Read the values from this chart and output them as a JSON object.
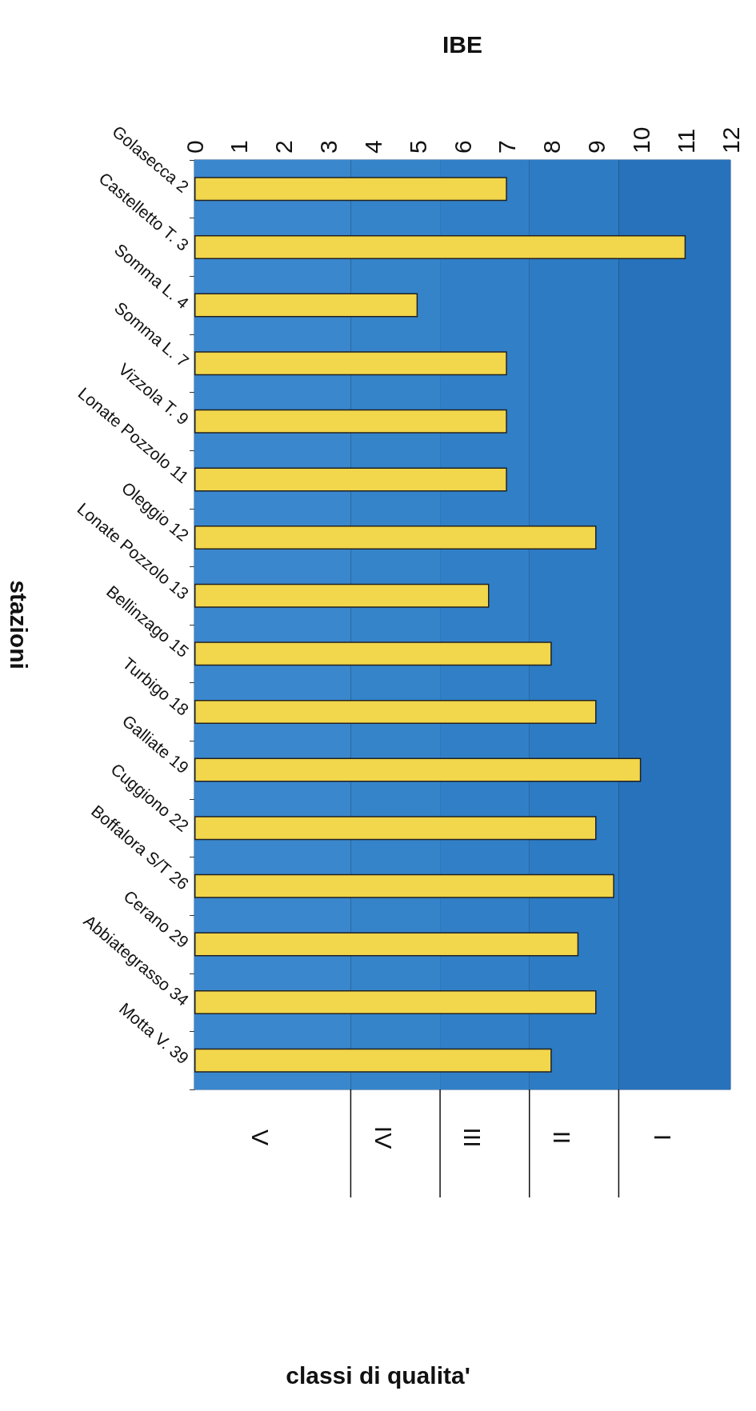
{
  "chart_data": {
    "type": "bar",
    "orientation": "horizontal",
    "xlabel": "IBE",
    "ylabel": "stazioni",
    "categories": [
      "Golasecca 2",
      "Castelletto T. 3",
      "Somma L. 4",
      "Somma L. 7",
      "Vizzola T. 9",
      "Lonate Pozzolo 11",
      "Oleggio 12",
      "Lonate Pozzolo 13",
      "Bellinzago 15",
      "Turbigo 18",
      "Galliate 19",
      "Cuggiono 22",
      "Boffalora S/T 26",
      "Cerano 29",
      "Abbiategrasso 34",
      "Motta V. 39"
    ],
    "values": [
      7,
      11,
      5,
      7,
      7,
      7,
      9,
      6.6,
      8,
      9,
      10,
      9,
      9.4,
      8.6,
      9,
      8
    ],
    "color": "#f2d64b",
    "xlim": [
      0,
      12
    ],
    "xticks": [
      0,
      1,
      2,
      3,
      4,
      5,
      6,
      7,
      8,
      9,
      10,
      11,
      12
    ],
    "bands": [
      {
        "axis": "x",
        "from": 0,
        "to": 3.5,
        "label": "V",
        "color": "#3a87cd"
      },
      {
        "axis": "x",
        "from": 3.5,
        "to": 5.5,
        "label": "IV",
        "color": "#3584ca"
      },
      {
        "axis": "x",
        "from": 5.5,
        "to": 7.5,
        "label": "III",
        "color": "#3180c7"
      },
      {
        "axis": "x",
        "from": 7.5,
        "to": 9.5,
        "label": "II",
        "color": "#2d7bc3"
      },
      {
        "axis": "x",
        "from": 9.5,
        "to": 12,
        "label": "I",
        "color": "#2772bb"
      }
    ],
    "ref_lines": [
      {
        "axis": "x",
        "value": 3.5,
        "color": "#111111"
      },
      {
        "axis": "x",
        "value": 5.5,
        "color": "#111111"
      },
      {
        "axis": "x",
        "value": 7.5,
        "color": "#111111"
      },
      {
        "axis": "x",
        "value": 9.5,
        "color": "#111111"
      }
    ],
    "annotations": [
      "classi di qualita'"
    ],
    "grid": false
  }
}
